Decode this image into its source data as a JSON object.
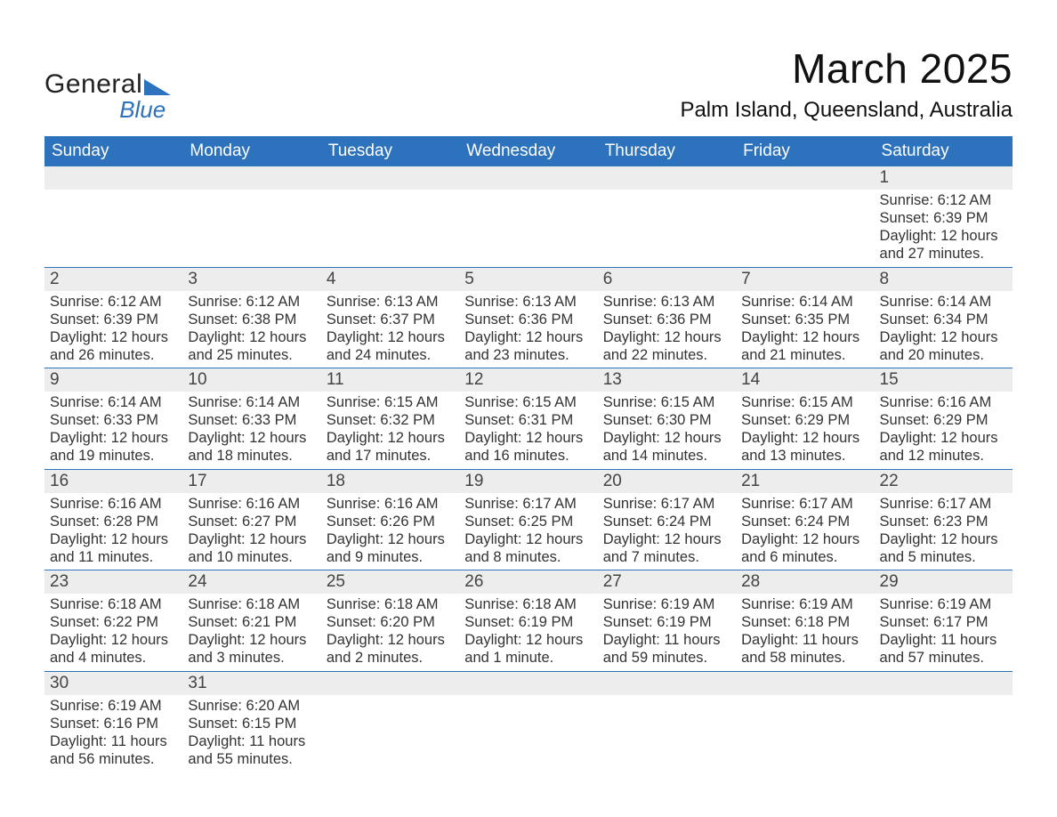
{
  "brand": {
    "general": "General",
    "blue": "Blue"
  },
  "header": {
    "month_title": "March 2025",
    "location": "Palm Island, Queensland, Australia"
  },
  "style": {
    "header_bg": "#2d72bc",
    "header_fg": "#ffffff",
    "daynum_bg": "#ededed",
    "text_color": "#333333",
    "row_divider": "#2d72bc",
    "font_family": "Arial"
  },
  "day_names": [
    "Sunday",
    "Monday",
    "Tuesday",
    "Wednesday",
    "Thursday",
    "Friday",
    "Saturday"
  ],
  "weeks": [
    {
      "nums": [
        "",
        "",
        "",
        "",
        "",
        "",
        "1"
      ],
      "cells": [
        null,
        null,
        null,
        null,
        null,
        null,
        {
          "sunrise": "Sunrise: 6:12 AM",
          "sunset": "Sunset: 6:39 PM",
          "day1": "Daylight: 12 hours",
          "day2": "and 27 minutes."
        }
      ]
    },
    {
      "nums": [
        "2",
        "3",
        "4",
        "5",
        "6",
        "7",
        "8"
      ],
      "cells": [
        {
          "sunrise": "Sunrise: 6:12 AM",
          "sunset": "Sunset: 6:39 PM",
          "day1": "Daylight: 12 hours",
          "day2": "and 26 minutes."
        },
        {
          "sunrise": "Sunrise: 6:12 AM",
          "sunset": "Sunset: 6:38 PM",
          "day1": "Daylight: 12 hours",
          "day2": "and 25 minutes."
        },
        {
          "sunrise": "Sunrise: 6:13 AM",
          "sunset": "Sunset: 6:37 PM",
          "day1": "Daylight: 12 hours",
          "day2": "and 24 minutes."
        },
        {
          "sunrise": "Sunrise: 6:13 AM",
          "sunset": "Sunset: 6:36 PM",
          "day1": "Daylight: 12 hours",
          "day2": "and 23 minutes."
        },
        {
          "sunrise": "Sunrise: 6:13 AM",
          "sunset": "Sunset: 6:36 PM",
          "day1": "Daylight: 12 hours",
          "day2": "and 22 minutes."
        },
        {
          "sunrise": "Sunrise: 6:14 AM",
          "sunset": "Sunset: 6:35 PM",
          "day1": "Daylight: 12 hours",
          "day2": "and 21 minutes."
        },
        {
          "sunrise": "Sunrise: 6:14 AM",
          "sunset": "Sunset: 6:34 PM",
          "day1": "Daylight: 12 hours",
          "day2": "and 20 minutes."
        }
      ]
    },
    {
      "nums": [
        "9",
        "10",
        "11",
        "12",
        "13",
        "14",
        "15"
      ],
      "cells": [
        {
          "sunrise": "Sunrise: 6:14 AM",
          "sunset": "Sunset: 6:33 PM",
          "day1": "Daylight: 12 hours",
          "day2": "and 19 minutes."
        },
        {
          "sunrise": "Sunrise: 6:14 AM",
          "sunset": "Sunset: 6:33 PM",
          "day1": "Daylight: 12 hours",
          "day2": "and 18 minutes."
        },
        {
          "sunrise": "Sunrise: 6:15 AM",
          "sunset": "Sunset: 6:32 PM",
          "day1": "Daylight: 12 hours",
          "day2": "and 17 minutes."
        },
        {
          "sunrise": "Sunrise: 6:15 AM",
          "sunset": "Sunset: 6:31 PM",
          "day1": "Daylight: 12 hours",
          "day2": "and 16 minutes."
        },
        {
          "sunrise": "Sunrise: 6:15 AM",
          "sunset": "Sunset: 6:30 PM",
          "day1": "Daylight: 12 hours",
          "day2": "and 14 minutes."
        },
        {
          "sunrise": "Sunrise: 6:15 AM",
          "sunset": "Sunset: 6:29 PM",
          "day1": "Daylight: 12 hours",
          "day2": "and 13 minutes."
        },
        {
          "sunrise": "Sunrise: 6:16 AM",
          "sunset": "Sunset: 6:29 PM",
          "day1": "Daylight: 12 hours",
          "day2": "and 12 minutes."
        }
      ]
    },
    {
      "nums": [
        "16",
        "17",
        "18",
        "19",
        "20",
        "21",
        "22"
      ],
      "cells": [
        {
          "sunrise": "Sunrise: 6:16 AM",
          "sunset": "Sunset: 6:28 PM",
          "day1": "Daylight: 12 hours",
          "day2": "and 11 minutes."
        },
        {
          "sunrise": "Sunrise: 6:16 AM",
          "sunset": "Sunset: 6:27 PM",
          "day1": "Daylight: 12 hours",
          "day2": "and 10 minutes."
        },
        {
          "sunrise": "Sunrise: 6:16 AM",
          "sunset": "Sunset: 6:26 PM",
          "day1": "Daylight: 12 hours",
          "day2": "and 9 minutes."
        },
        {
          "sunrise": "Sunrise: 6:17 AM",
          "sunset": "Sunset: 6:25 PM",
          "day1": "Daylight: 12 hours",
          "day2": "and 8 minutes."
        },
        {
          "sunrise": "Sunrise: 6:17 AM",
          "sunset": "Sunset: 6:24 PM",
          "day1": "Daylight: 12 hours",
          "day2": "and 7 minutes."
        },
        {
          "sunrise": "Sunrise: 6:17 AM",
          "sunset": "Sunset: 6:24 PM",
          "day1": "Daylight: 12 hours",
          "day2": "and 6 minutes."
        },
        {
          "sunrise": "Sunrise: 6:17 AM",
          "sunset": "Sunset: 6:23 PM",
          "day1": "Daylight: 12 hours",
          "day2": "and 5 minutes."
        }
      ]
    },
    {
      "nums": [
        "23",
        "24",
        "25",
        "26",
        "27",
        "28",
        "29"
      ],
      "cells": [
        {
          "sunrise": "Sunrise: 6:18 AM",
          "sunset": "Sunset: 6:22 PM",
          "day1": "Daylight: 12 hours",
          "day2": "and 4 minutes."
        },
        {
          "sunrise": "Sunrise: 6:18 AM",
          "sunset": "Sunset: 6:21 PM",
          "day1": "Daylight: 12 hours",
          "day2": "and 3 minutes."
        },
        {
          "sunrise": "Sunrise: 6:18 AM",
          "sunset": "Sunset: 6:20 PM",
          "day1": "Daylight: 12 hours",
          "day2": "and 2 minutes."
        },
        {
          "sunrise": "Sunrise: 6:18 AM",
          "sunset": "Sunset: 6:19 PM",
          "day1": "Daylight: 12 hours",
          "day2": "and 1 minute."
        },
        {
          "sunrise": "Sunrise: 6:19 AM",
          "sunset": "Sunset: 6:19 PM",
          "day1": "Daylight: 11 hours",
          "day2": "and 59 minutes."
        },
        {
          "sunrise": "Sunrise: 6:19 AM",
          "sunset": "Sunset: 6:18 PM",
          "day1": "Daylight: 11 hours",
          "day2": "and 58 minutes."
        },
        {
          "sunrise": "Sunrise: 6:19 AM",
          "sunset": "Sunset: 6:17 PM",
          "day1": "Daylight: 11 hours",
          "day2": "and 57 minutes."
        }
      ]
    },
    {
      "nums": [
        "30",
        "31",
        "",
        "",
        "",
        "",
        ""
      ],
      "cells": [
        {
          "sunrise": "Sunrise: 6:19 AM",
          "sunset": "Sunset: 6:16 PM",
          "day1": "Daylight: 11 hours",
          "day2": "and 56 minutes."
        },
        {
          "sunrise": "Sunrise: 6:20 AM",
          "sunset": "Sunset: 6:15 PM",
          "day1": "Daylight: 11 hours",
          "day2": "and 55 minutes."
        },
        null,
        null,
        null,
        null,
        null
      ]
    }
  ]
}
